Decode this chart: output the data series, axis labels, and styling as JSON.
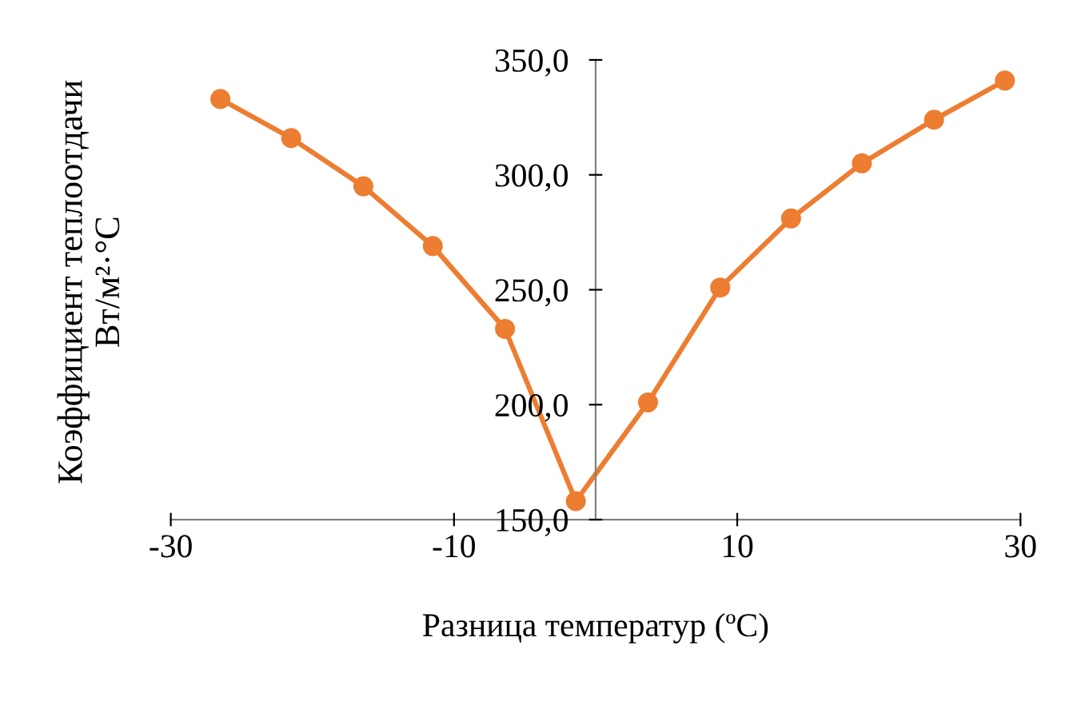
{
  "chart_data": {
    "type": "line",
    "xlabel": "Разница температур (ºС)",
    "ylabel": "Коэффициент теплоотдачи\nВт/м²·°С",
    "series": [
      {
        "color": "#ed7d31",
        "x": [
          -26.5,
          -21.5,
          -16.4,
          -11.5,
          -6.4,
          -1.4,
          3.7,
          8.8,
          13.8,
          18.8,
          23.9,
          28.9
        ],
        "values": [
          333,
          316,
          295,
          269,
          233,
          158,
          201,
          251,
          281,
          305,
          324,
          341
        ]
      }
    ],
    "xlim": [
      -30,
      30
    ],
    "xticks": [
      -30,
      -10,
      10,
      30
    ],
    "ylim": [
      150,
      350
    ],
    "yticks": [
      {
        "value": 150,
        "label": "150,0"
      },
      {
        "value": 200,
        "label": "200,0"
      },
      {
        "value": 250,
        "label": "250,0"
      },
      {
        "value": 300,
        "label": "300,0"
      },
      {
        "value": 350,
        "label": "350,0"
      }
    ],
    "marker": "circle",
    "line_style": "solid",
    "grid": false,
    "legend": false
  }
}
